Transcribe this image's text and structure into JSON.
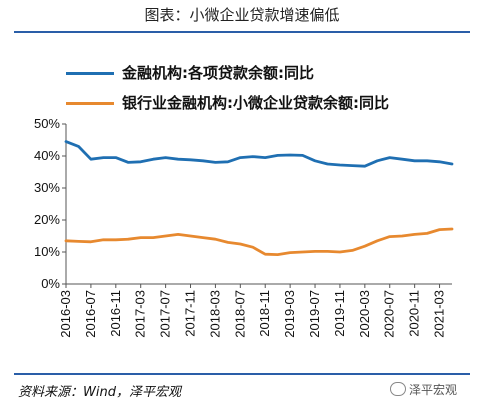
{
  "figure_title": "图表：小微企业贷款增速偏低",
  "source": "资料来源：Wind，泽平宏观",
  "watermark": "泽平宏观",
  "chart_data": {
    "type": "line",
    "x": [
      "2016-03",
      "2016-05",
      "2016-07",
      "2016-09",
      "2016-11",
      "2017-01",
      "2017-03",
      "2017-05",
      "2017-07",
      "2017-09",
      "2017-11",
      "2018-01",
      "2018-03",
      "2018-05",
      "2018-07",
      "2018-09",
      "2018-11",
      "2019-01",
      "2019-03",
      "2019-05",
      "2019-07",
      "2019-09",
      "2019-11",
      "2020-01",
      "2020-03",
      "2020-05",
      "2020-07",
      "2020-09",
      "2020-11",
      "2021-01",
      "2021-03",
      "2021-05"
    ],
    "xtick_labels": [
      "2016-03",
      "2016-07",
      "2016-11",
      "2017-03",
      "2017-07",
      "2017-11",
      "2018-03",
      "2018-07",
      "2018-11",
      "2019-03",
      "2019-07",
      "2019-11",
      "2020-03",
      "2020-07",
      "2020-11",
      "2021-03"
    ],
    "yticks": [
      "0%",
      "10%",
      "20%",
      "30%",
      "40%",
      "50%"
    ],
    "ylim": [
      0,
      50
    ],
    "y_unit": "%",
    "series": [
      {
        "name": "金融机构:各项贷款余额:同比",
        "color": "#1f6fb2",
        "values": [
          44.5,
          43.0,
          39.0,
          39.5,
          39.5,
          38.0,
          38.2,
          39.0,
          39.5,
          39.0,
          38.8,
          38.5,
          38.0,
          38.2,
          39.5,
          39.8,
          39.5,
          40.2,
          40.3,
          40.2,
          38.5,
          37.5,
          37.2,
          37.0,
          36.8,
          38.5,
          39.5,
          39.0,
          38.5,
          38.5,
          38.2,
          37.5
        ]
      },
      {
        "name": "银行业金融机构:小微企业贷款余额:同比",
        "color": "#e7892f",
        "values": [
          13.5,
          13.3,
          13.2,
          13.8,
          13.8,
          14.0,
          14.5,
          14.5,
          15.0,
          15.5,
          15.0,
          14.5,
          14.0,
          13.0,
          12.5,
          11.5,
          9.3,
          9.2,
          9.8,
          10.0,
          10.2,
          10.2,
          10.0,
          10.5,
          11.8,
          13.5,
          14.8,
          15.0,
          15.5,
          15.8,
          17.0,
          17.2
        ]
      }
    ],
    "grid": false,
    "legend_position": "top-left"
  }
}
